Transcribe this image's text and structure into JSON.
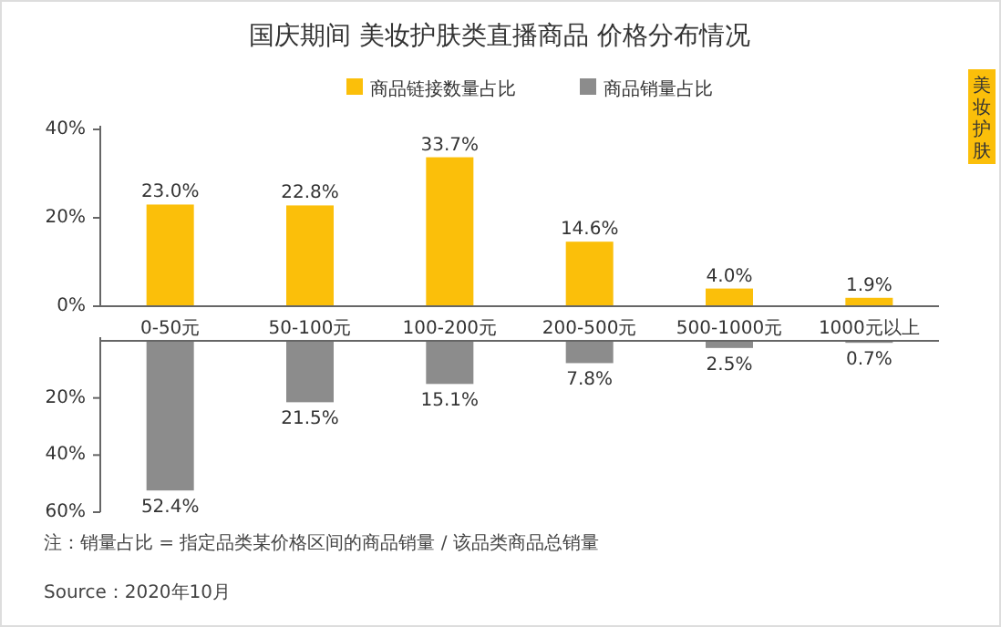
{
  "chart_data": [
    {
      "type": "bar",
      "title": "国庆期间 美妆护肤类直播商品 价格分布情况",
      "categories": [
        "0-50元",
        "50-100元",
        "100-200元",
        "200-500元",
        "500-1000元",
        "1000元以上"
      ],
      "series": [
        {
          "name": "商品链接数量占比",
          "color": "#fbbf0a",
          "values": [
            23.0,
            22.8,
            33.7,
            14.6,
            4.0,
            1.9
          ],
          "value_labels": [
            "23.0%",
            "22.8%",
            "33.7%",
            "14.6%",
            "4.0%",
            "1.9%"
          ]
        }
      ],
      "ylim": [
        0,
        40
      ],
      "yticks": [
        {
          "value": 0,
          "label": "0%"
        },
        {
          "value": 20,
          "label": "20%"
        },
        {
          "value": 40,
          "label": "40%"
        }
      ],
      "legend": "top",
      "annotations": [
        "美妆护肤"
      ]
    },
    {
      "type": "bar",
      "categories": [
        null,
        null,
        null,
        null,
        null,
        null
      ],
      "series": [
        {
          "name": "商品销量占比",
          "color": "#8c8c8c",
          "values": [
            52.4,
            21.5,
            15.1,
            7.8,
            2.5,
            0.7
          ],
          "value_labels": [
            "52.4%",
            "21.5%",
            "15.1%",
            "7.8%",
            "2.5%",
            "0.7%"
          ]
        }
      ],
      "ylim": [
        60,
        0
      ],
      "yticks": [
        {
          "value": 20,
          "label": "20%"
        },
        {
          "value": 40,
          "label": "40%"
        },
        {
          "value": 60,
          "label": "60%"
        }
      ],
      "legend": "top",
      "tick_labels": "y",
      "annotations": [
        "注：销量占比 = 指定品类某价格区间的商品销量 / 该品类商品总销量",
        "Source：2020年10月"
      ]
    }
  ]
}
